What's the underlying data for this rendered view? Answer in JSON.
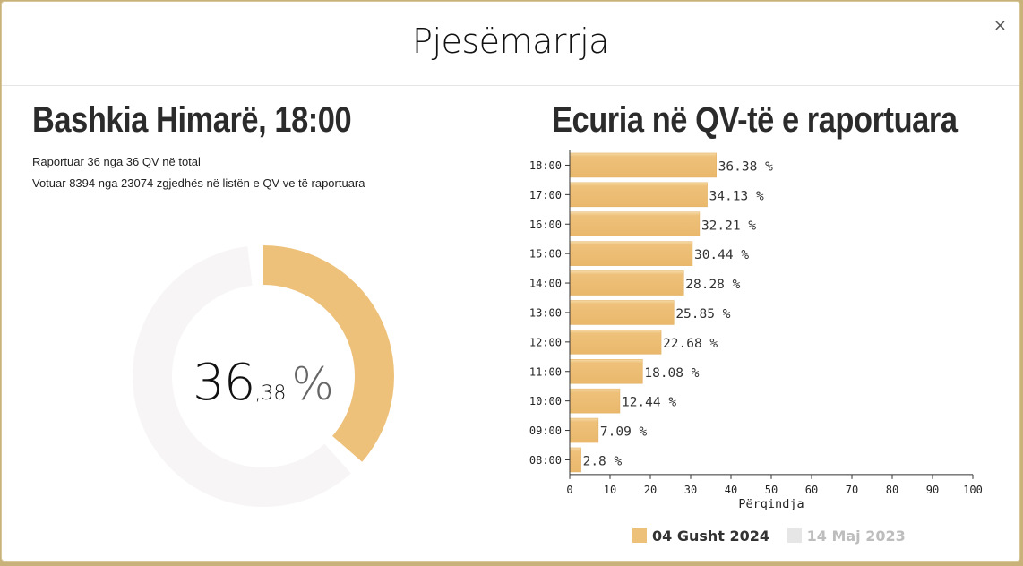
{
  "modal": {
    "title": "Pjesëmarrja",
    "close_label": "×"
  },
  "left": {
    "heading": "Bashkia Himarë, 18:00",
    "info_line1": "Raportuar 36 nga 36 QV në total",
    "info_line2": "Votuar 8394 nga 23074 zgjedhës në listën e QV-ve të raportuara",
    "donut": {
      "value_int": "36",
      "value_dec": ",38",
      "unit": "%",
      "value": 36.38
    }
  },
  "right": {
    "heading": "Ecuria në QV-të e raportuara"
  },
  "colors": {
    "accent": "#eec17a",
    "donut_track": "#f7f5f5",
    "legend_inactive": "#e6e6e6"
  },
  "chart_data": {
    "type": "bar",
    "orientation": "horizontal",
    "categories": [
      "18:00",
      "17:00",
      "16:00",
      "15:00",
      "14:00",
      "13:00",
      "12:00",
      "11:00",
      "10:00",
      "09:00",
      "08:00"
    ],
    "series": [
      {
        "name": "04 Gusht 2024",
        "values": [
          36.38,
          34.13,
          32.21,
          30.44,
          28.28,
          25.85,
          22.68,
          18.08,
          12.44,
          7.09,
          2.8
        ]
      }
    ],
    "value_suffix": " %",
    "xlabel": "Përqindja",
    "xlim": [
      0,
      100
    ],
    "xticks": [
      0,
      10,
      20,
      30,
      40,
      50,
      60,
      70,
      80,
      90,
      100
    ],
    "legend": [
      {
        "label": "04 Gusht 2024",
        "active": true
      },
      {
        "label": "14 Maj 2023",
        "active": false
      }
    ],
    "legend_position": "bottom"
  }
}
